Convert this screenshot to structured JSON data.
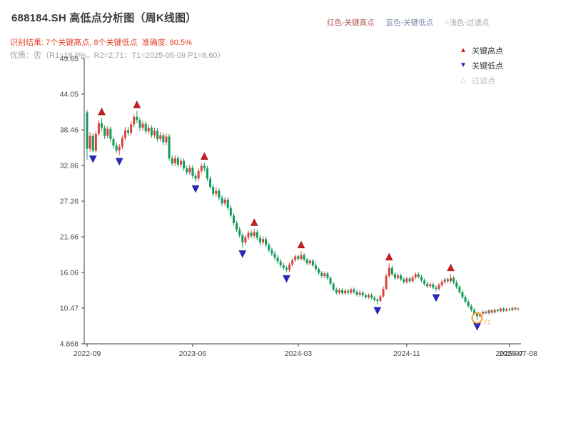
{
  "header": {
    "title": "688184.SH 高低点分析图（周K线图）",
    "top_legend": [
      {
        "label": "红色-关键高点",
        "color": "#b1524f"
      },
      {
        "label": "蓝色-关键低点",
        "color": "#7f8bab"
      },
      {
        "label": "○浅色-过滤点",
        "color": "#a6a6a6"
      }
    ],
    "result_line": "识别结果: 7个关键高点, 8个关键低点  准确度: 80.5%",
    "quality_line": "优质：否（R1=16.0%，R2=2.71；T1=2025-05-09 P1=8.60）"
  },
  "chart_data": {
    "type": "candlestick",
    "title": "688184.SH 高低点分析图（周K线图）",
    "xlabel": "",
    "ylabel": "",
    "stats": {
      "key_highs": 7,
      "key_lows": 8,
      "accuracy": "80.5%"
    },
    "legend": {
      "key_high": "关键高点",
      "key_low": "关键低点",
      "filtered": "过滤点"
    },
    "y_axis": {
      "range": [
        4.868,
        49.65
      ],
      "tick_labels": [
        "49.65",
        "44.05",
        "38.46",
        "32.86",
        "27.26",
        "21.66",
        "16.06",
        "10.47",
        "4.868"
      ]
    },
    "x_ticks": [
      {
        "label": "2022-09",
        "week": 0
      },
      {
        "label": "2023-06",
        "week": 36
      },
      {
        "label": "2024-03",
        "week": 72
      },
      {
        "label": "2024-11",
        "week": 109
      },
      {
        "label": "2025-07",
        "week": 144
      }
    ],
    "end_label": {
      "label": "2025-07-08",
      "week": 147
    },
    "candles": [
      [
        41.2,
        41.6,
        33.8,
        35.5
      ],
      [
        35.5,
        38.1,
        35.0,
        37.5
      ],
      [
        37.5,
        37.9,
        34.9,
        35.2
      ],
      [
        35.2,
        38.3,
        34.9,
        37.8
      ],
      [
        37.8,
        40.0,
        37.4,
        39.5
      ],
      [
        39.5,
        40.3,
        38.2,
        38.8
      ],
      [
        38.8,
        39.2,
        37.0,
        37.5
      ],
      [
        37.5,
        39.0,
        37.1,
        38.6
      ],
      [
        38.6,
        39.0,
        36.6,
        37.0
      ],
      [
        37.0,
        37.4,
        35.5,
        36.0
      ],
      [
        36.0,
        36.5,
        34.8,
        35.2
      ],
      [
        35.2,
        36.2,
        34.5,
        35.8
      ],
      [
        35.8,
        37.6,
        35.4,
        37.2
      ],
      [
        37.2,
        38.9,
        36.8,
        38.4
      ],
      [
        38.4,
        38.9,
        37.5,
        38.0
      ],
      [
        38.0,
        39.8,
        37.6,
        39.3
      ],
      [
        39.3,
        40.9,
        38.9,
        40.5
      ],
      [
        40.5,
        41.4,
        39.5,
        40.0
      ],
      [
        40.0,
        40.4,
        38.3,
        38.8
      ],
      [
        38.8,
        39.9,
        38.4,
        39.4
      ],
      [
        39.4,
        39.8,
        37.8,
        38.2
      ],
      [
        38.2,
        39.3,
        37.8,
        38.8
      ],
      [
        38.8,
        39.2,
        37.2,
        37.6
      ],
      [
        37.6,
        38.8,
        37.2,
        38.3
      ],
      [
        38.3,
        38.7,
        36.6,
        37.0
      ],
      [
        37.0,
        38.1,
        36.6,
        37.6
      ],
      [
        37.6,
        38.0,
        36.0,
        36.5
      ],
      [
        36.5,
        37.9,
        36.1,
        37.4
      ],
      [
        37.4,
        37.8,
        33.6,
        34.0
      ],
      [
        34.0,
        34.5,
        32.8,
        33.2
      ],
      [
        33.2,
        34.5,
        32.8,
        34.0
      ],
      [
        34.0,
        34.4,
        32.6,
        33.0
      ],
      [
        33.0,
        34.1,
        32.6,
        33.6
      ],
      [
        33.6,
        34.0,
        32.0,
        32.4
      ],
      [
        32.4,
        32.9,
        31.4,
        31.8
      ],
      [
        31.8,
        33.0,
        31.4,
        32.5
      ],
      [
        32.5,
        32.9,
        30.8,
        31.2
      ],
      [
        31.2,
        31.6,
        30.2,
        30.8
      ],
      [
        30.8,
        32.4,
        30.4,
        32.0
      ],
      [
        32.0,
        33.2,
        31.6,
        32.8
      ],
      [
        32.8,
        33.3,
        31.9,
        32.4
      ],
      [
        32.4,
        32.8,
        30.4,
        30.8
      ],
      [
        30.8,
        31.2,
        29.1,
        29.5
      ],
      [
        29.5,
        29.9,
        28.0,
        28.4
      ],
      [
        28.4,
        29.4,
        28.0,
        28.9
      ],
      [
        28.9,
        29.3,
        27.4,
        27.8
      ],
      [
        27.8,
        28.2,
        26.5,
        26.9
      ],
      [
        26.9,
        27.9,
        26.5,
        27.5
      ],
      [
        27.5,
        27.9,
        25.8,
        26.2
      ],
      [
        26.2,
        26.6,
        24.6,
        25.0
      ],
      [
        25.0,
        25.4,
        23.4,
        23.8
      ],
      [
        23.8,
        24.2,
        22.4,
        22.8
      ],
      [
        22.8,
        23.2,
        21.5,
        21.9
      ],
      [
        21.9,
        22.3,
        20.0,
        20.8
      ],
      [
        20.8,
        22.0,
        20.4,
        21.6
      ],
      [
        21.6,
        22.7,
        21.2,
        22.3
      ],
      [
        22.3,
        22.7,
        21.4,
        21.8
      ],
      [
        21.8,
        22.9,
        21.4,
        22.4
      ],
      [
        22.4,
        22.8,
        21.1,
        21.5
      ],
      [
        21.5,
        21.9,
        20.4,
        20.8
      ],
      [
        20.8,
        21.7,
        20.4,
        21.3
      ],
      [
        21.3,
        21.7,
        20.0,
        20.4
      ],
      [
        20.4,
        20.8,
        19.2,
        19.6
      ],
      [
        19.6,
        20.0,
        18.6,
        19.0
      ],
      [
        19.0,
        19.4,
        18.0,
        18.4
      ],
      [
        18.4,
        18.8,
        17.4,
        17.8
      ],
      [
        17.8,
        18.2,
        16.9,
        17.2
      ],
      [
        17.2,
        17.6,
        16.5,
        16.8
      ],
      [
        16.8,
        17.1,
        16.1,
        16.5
      ],
      [
        16.5,
        17.6,
        16.2,
        17.3
      ],
      [
        17.3,
        18.3,
        17.0,
        18.0
      ],
      [
        18.0,
        18.9,
        17.7,
        18.6
      ],
      [
        18.6,
        18.9,
        17.9,
        18.2
      ],
      [
        18.2,
        19.4,
        17.9,
        18.8
      ],
      [
        18.8,
        19.1,
        17.8,
        18.1
      ],
      [
        18.1,
        18.4,
        17.2,
        17.5
      ],
      [
        17.5,
        18.2,
        17.2,
        17.9
      ],
      [
        17.9,
        18.2,
        16.9,
        17.2
      ],
      [
        17.2,
        17.5,
        16.3,
        16.6
      ],
      [
        16.6,
        16.9,
        15.7,
        16.0
      ],
      [
        16.0,
        16.3,
        15.2,
        15.5
      ],
      [
        15.5,
        16.2,
        15.2,
        15.9
      ],
      [
        15.9,
        16.2,
        14.9,
        15.2
      ],
      [
        15.2,
        15.5,
        14.0,
        14.3
      ],
      [
        14.3,
        14.6,
        13.1,
        13.4
      ],
      [
        13.4,
        13.7,
        12.6,
        12.9
      ],
      [
        12.9,
        13.6,
        12.6,
        13.3
      ],
      [
        13.3,
        13.6,
        12.5,
        12.8
      ],
      [
        12.8,
        13.5,
        12.5,
        13.2
      ],
      [
        13.2,
        13.5,
        12.6,
        12.9
      ],
      [
        12.9,
        13.7,
        12.6,
        13.4
      ],
      [
        13.4,
        13.7,
        12.7,
        13.0
      ],
      [
        13.0,
        13.3,
        12.3,
        12.6
      ],
      [
        12.6,
        13.2,
        12.3,
        12.9
      ],
      [
        12.9,
        13.2,
        12.2,
        12.5
      ],
      [
        12.5,
        12.8,
        11.9,
        12.2
      ],
      [
        12.2,
        12.8,
        11.9,
        12.5
      ],
      [
        12.5,
        12.8,
        11.8,
        12.1
      ],
      [
        12.1,
        12.4,
        11.5,
        11.8
      ],
      [
        11.8,
        12.0,
        11.1,
        11.6
      ],
      [
        11.6,
        12.6,
        11.4,
        12.3
      ],
      [
        12.3,
        13.9,
        12.1,
        13.5
      ],
      [
        13.5,
        15.9,
        13.3,
        15.5
      ],
      [
        15.5,
        17.5,
        15.2,
        16.8
      ],
      [
        16.8,
        17.1,
        15.5,
        15.8
      ],
      [
        15.8,
        16.1,
        14.9,
        15.2
      ],
      [
        15.2,
        15.9,
        14.9,
        15.6
      ],
      [
        15.6,
        15.9,
        14.7,
        15.0
      ],
      [
        15.0,
        15.3,
        14.3,
        14.6
      ],
      [
        14.6,
        15.4,
        14.3,
        15.1
      ],
      [
        15.1,
        15.4,
        14.4,
        14.7
      ],
      [
        14.7,
        15.6,
        14.4,
        15.3
      ],
      [
        15.3,
        16.1,
        15.0,
        15.8
      ],
      [
        15.8,
        16.1,
        15.1,
        15.4
      ],
      [
        15.4,
        15.7,
        14.5,
        14.8
      ],
      [
        14.8,
        15.1,
        14.0,
        14.3
      ],
      [
        14.3,
        14.6,
        13.6,
        13.9
      ],
      [
        13.9,
        14.5,
        13.6,
        14.2
      ],
      [
        14.2,
        14.5,
        13.4,
        13.7
      ],
      [
        13.7,
        14.0,
        13.1,
        13.5
      ],
      [
        13.5,
        14.4,
        13.2,
        14.1
      ],
      [
        14.1,
        14.9,
        13.8,
        14.6
      ],
      [
        14.6,
        15.3,
        14.3,
        15.0
      ],
      [
        15.0,
        15.3,
        14.4,
        14.7
      ],
      [
        14.7,
        15.8,
        14.4,
        15.2
      ],
      [
        15.2,
        15.5,
        14.2,
        14.5
      ],
      [
        14.5,
        14.8,
        13.5,
        13.8
      ],
      [
        13.8,
        14.1,
        12.7,
        13.0
      ],
      [
        13.0,
        13.3,
        11.9,
        12.2
      ],
      [
        12.2,
        12.5,
        11.2,
        11.5
      ],
      [
        11.5,
        11.8,
        10.5,
        10.8
      ],
      [
        10.8,
        11.1,
        9.9,
        10.2
      ],
      [
        10.2,
        10.5,
        9.4,
        9.6
      ],
      [
        9.6,
        9.9,
        8.6,
        9.2
      ],
      [
        9.2,
        9.8,
        9.0,
        9.6
      ],
      [
        9.6,
        10.1,
        9.4,
        9.9
      ],
      [
        9.9,
        10.1,
        9.5,
        9.7
      ],
      [
        9.7,
        10.3,
        9.5,
        10.1
      ],
      [
        10.1,
        10.3,
        9.6,
        9.8
      ],
      [
        9.8,
        10.4,
        9.6,
        10.2
      ],
      [
        10.2,
        10.4,
        9.8,
        10.0
      ],
      [
        10.0,
        10.6,
        9.8,
        10.4
      ],
      [
        10.4,
        10.6,
        9.9,
        10.1
      ],
      [
        10.1,
        10.5,
        9.9,
        10.3
      ],
      [
        10.3,
        10.5,
        10.0,
        10.2
      ],
      [
        10.2,
        10.7,
        10.0,
        10.5
      ],
      [
        10.5,
        10.7,
        10.1,
        10.3
      ],
      [
        10.3,
        10.6,
        10.1,
        10.4
      ]
    ],
    "key_highs": [
      [
        5,
        40.3
      ],
      [
        17,
        41.4
      ],
      [
        40,
        33.3
      ],
      [
        57,
        22.9
      ],
      [
        73,
        19.4
      ],
      [
        103,
        17.5
      ],
      [
        124,
        15.8
      ]
    ],
    "key_lows": [
      [
        2,
        34.9
      ],
      [
        11,
        34.5
      ],
      [
        37,
        30.2
      ],
      [
        53,
        20.0
      ],
      [
        68,
        16.1
      ],
      [
        99,
        11.1
      ],
      [
        119,
        13.1
      ],
      [
        133,
        8.6
      ]
    ],
    "highlight_ring": {
      "week": 133,
      "price": 8.6
    },
    "annotation": {
      "text": "T1",
      "week": 133,
      "price": 8.6
    },
    "colors": {
      "up": "#d9433b",
      "down": "#129a5a",
      "key_high": "#cf1d1d",
      "key_low": "#2727c4",
      "filtered_ring": "#f2a33c",
      "axis": "#3c3c3c",
      "tick_label": "#4a4a4a"
    }
  }
}
